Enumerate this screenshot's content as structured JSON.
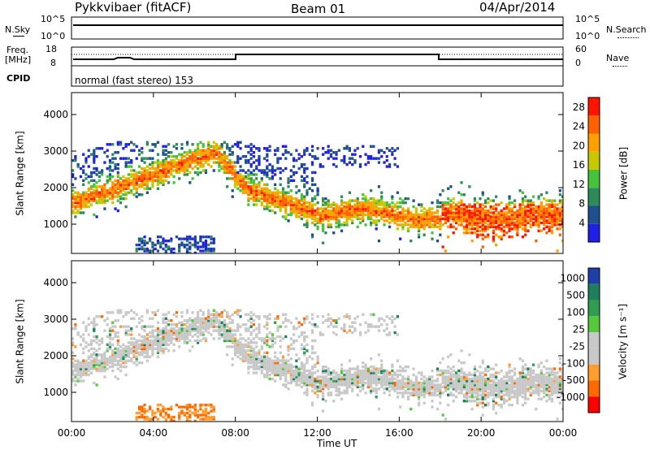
{
  "header": {
    "radar_title": "Pykkvibaer (fitACF)",
    "beam": "Beam 01",
    "date": "04/Apr/2014"
  },
  "status_panel": {
    "nsky_label": "N.Sky",
    "nsky_top": "10^5",
    "nsky_bottom": "10^0",
    "nsearch_label": "N.Search",
    "nsearch_top": "10^5",
    "nsearch_bottom": "10^0",
    "freq_label": "Freq.",
    "freq_unit": "[MHz]",
    "freq_top": "18",
    "freq_bottom": "8",
    "nave_label": "Nave",
    "nave_top": "60",
    "nave_bottom": "0",
    "cpid_label": "CPID",
    "cpid_value": "normal (fast stereo) 153"
  },
  "colors": {
    "power": [
      "#1f1fe8",
      "#1f4f8f",
      "#2e8a5a",
      "#47c23d",
      "#c8c800",
      "#ff9f00",
      "#ff6000",
      "#ff1400"
    ],
    "velocity": [
      "#ff0000",
      "#ff6a00",
      "#ff9d2e",
      "#c8c8c8",
      "#c8c8c8",
      "#57c83c",
      "#2f9d52",
      "#1f7f5c",
      "#1f3fa8"
    ],
    "grey_scatter": "#c8c8c8"
  },
  "chart_data": [
    {
      "type": "heatmap",
      "name": "power",
      "ylabel": "Slant Range [km]",
      "y_ticks": [
        "1000",
        "2000",
        "3000",
        "4000"
      ],
      "ylim": [
        200,
        4600
      ],
      "colorbar_label": "Power [dB]",
      "colorbar_ticks": [
        "4",
        "8",
        "12",
        "16",
        "20",
        "24",
        "28"
      ],
      "colorbar_range": [
        0,
        30
      ],
      "notes": "Main echo band ~1600 km at 00 UT rising to ~3000 km near 07 UT, descending to ~1300 km by 12-18 UT; strongest power (24-30 dB) after 18 UT around 900-1400 km."
    },
    {
      "type": "heatmap",
      "name": "velocity",
      "ylabel": "Slant Range [km]",
      "y_ticks": [
        "1000",
        "2000",
        "3000",
        "4000"
      ],
      "ylim": [
        200,
        4600
      ],
      "colorbar_label": "Velocity [m s⁻¹]",
      "colorbar_ticks": [
        "1000",
        "500",
        "100",
        "25",
        "-25",
        "-100",
        "-500",
        "-1000"
      ],
      "colorbar_range": [
        -1000,
        1000
      ],
      "notes": "Mostly low-velocity (grey) ground scatter band following the power band; negative velocities (orange) near 400-700 km at 03-07 UT."
    }
  ],
  "x_axis": {
    "label": "Time UT",
    "ticks": [
      "00:00",
      "04:00",
      "08:00",
      "12:00",
      "16:00",
      "20:00",
      "00:00"
    ],
    "range_hours": [
      0,
      24
    ]
  }
}
